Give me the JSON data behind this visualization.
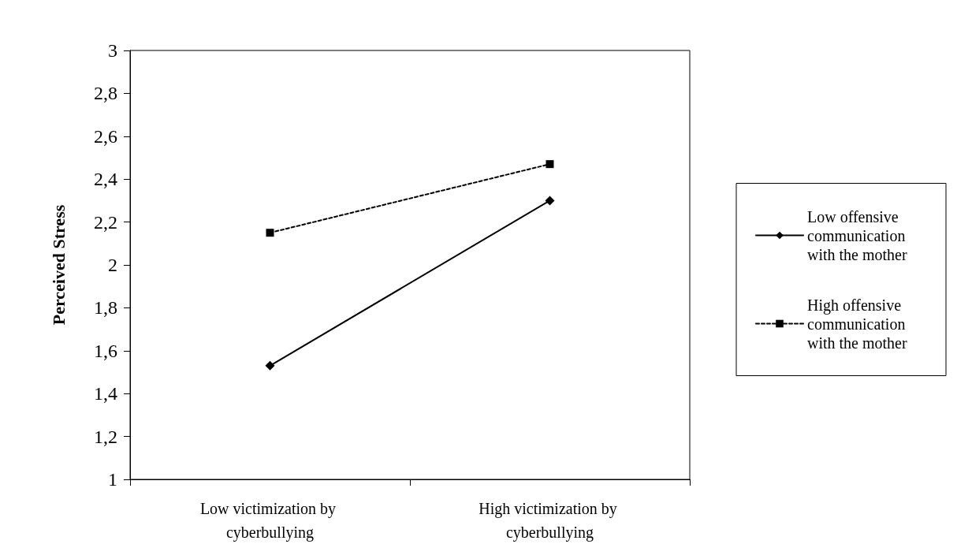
{
  "chart_data": {
    "type": "line",
    "ylabel": "Perceived Stress",
    "categories": [
      "Low victimization by cyberbullying",
      "High victimization by cyberbullying"
    ],
    "series": [
      {
        "name": "Low offensive communication with the mother",
        "color": "#000000",
        "values": [
          1.53,
          2.3
        ],
        "marker": "diamond",
        "line_style": "solid"
      },
      {
        "name": "High offensive communication with the mother",
        "color": "#000000",
        "values": [
          2.15,
          2.47
        ],
        "marker": "square",
        "line_style": "dashed"
      }
    ],
    "ylim": [
      1,
      3
    ],
    "yticks": [
      1,
      {
        "value": 1.2,
        "label": "1,2"
      },
      {
        "value": 1.4,
        "label": "1,4"
      },
      {
        "value": 1.6,
        "label": "1,6"
      },
      {
        "value": 1.8,
        "label": "1,8"
      },
      2,
      {
        "value": 2.2,
        "label": "2,2"
      },
      {
        "value": 2.4,
        "label": "2,4"
      },
      {
        "value": 2.6,
        "label": "2,6"
      },
      {
        "value": 2.8,
        "label": "2,8"
      },
      3
    ],
    "grid": false,
    "legend": "right"
  }
}
